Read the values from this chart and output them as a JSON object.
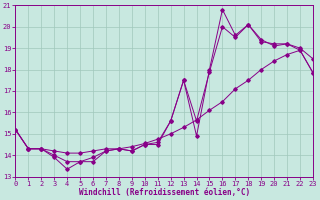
{
  "xlabel": "Windchill (Refroidissement éolien,°C)",
  "xlim": [
    0,
    23
  ],
  "ylim": [
    13,
    21
  ],
  "yticks": [
    13,
    14,
    15,
    16,
    17,
    18,
    19,
    20,
    21
  ],
  "xticks": [
    0,
    1,
    2,
    3,
    4,
    5,
    6,
    7,
    8,
    9,
    10,
    11,
    12,
    13,
    14,
    15,
    16,
    17,
    18,
    19,
    20,
    21,
    22,
    23
  ],
  "bg_color": "#c8e8e0",
  "grid_color": "#a0c8bc",
  "line_color": "#880088",
  "line1_x": [
    0,
    1,
    2,
    3,
    4,
    5,
    6,
    7,
    8,
    9,
    10,
    11,
    12,
    13,
    14,
    15,
    16,
    17,
    18,
    19,
    20,
    21,
    22,
    23
  ],
  "line1_y": [
    15.2,
    14.3,
    14.3,
    13.9,
    13.35,
    13.7,
    13.7,
    14.2,
    14.3,
    14.2,
    14.5,
    14.6,
    15.6,
    17.5,
    14.9,
    18.0,
    20.8,
    19.6,
    20.1,
    19.3,
    19.2,
    19.2,
    18.9,
    17.85
  ],
  "line2_x": [
    0,
    1,
    2,
    3,
    4,
    5,
    6,
    7,
    8,
    9,
    10,
    11,
    12,
    13,
    14,
    15,
    16,
    17,
    18,
    19,
    20,
    21,
    22,
    23
  ],
  "line2_y": [
    15.2,
    14.3,
    14.3,
    14.0,
    13.7,
    13.7,
    13.9,
    14.2,
    14.3,
    14.2,
    14.5,
    14.5,
    15.6,
    17.5,
    15.6,
    17.9,
    20.0,
    19.5,
    20.1,
    19.4,
    19.1,
    19.2,
    19.0,
    18.5
  ],
  "line3_x": [
    0,
    1,
    2,
    3,
    4,
    5,
    6,
    7,
    8,
    9,
    10,
    11,
    12,
    13,
    14,
    15,
    16,
    17,
    18,
    19,
    20,
    21,
    22,
    23
  ],
  "line3_y": [
    15.2,
    14.3,
    14.3,
    14.2,
    14.1,
    14.1,
    14.2,
    14.3,
    14.3,
    14.4,
    14.55,
    14.75,
    15.0,
    15.3,
    15.65,
    16.1,
    16.5,
    17.1,
    17.5,
    18.0,
    18.4,
    18.7,
    18.9,
    17.85
  ]
}
